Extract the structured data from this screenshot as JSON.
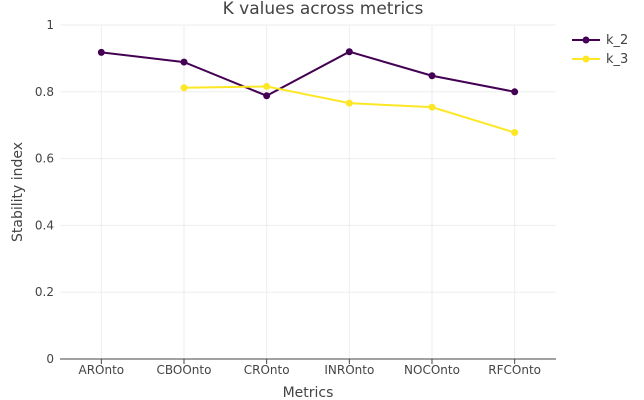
{
  "chart_data": {
    "type": "line",
    "title": "K values across metrics",
    "xlabel": "Metrics",
    "ylabel": "Stability index",
    "categories": [
      "AROnto",
      "CBOOnto",
      "CROnto",
      "INROnto",
      "NOCOnto",
      "RFCOnto"
    ],
    "ylim": [
      0,
      1
    ],
    "yticks": [
      0,
      0.2,
      0.4,
      0.6,
      0.8,
      1
    ],
    "ytick_labels": [
      "0",
      "0.2",
      "0.4",
      "0.6",
      "0.8",
      "1"
    ],
    "grid": true,
    "legend_position": "top-right",
    "series": [
      {
        "name": "k_2",
        "color": "#440154",
        "values": [
          0.918,
          0.889,
          0.788,
          0.92,
          0.848,
          0.8
        ]
      },
      {
        "name": "k_3",
        "color": "#fde725",
        "values": [
          null,
          0.812,
          0.816,
          0.766,
          0.754,
          0.678
        ]
      }
    ]
  }
}
